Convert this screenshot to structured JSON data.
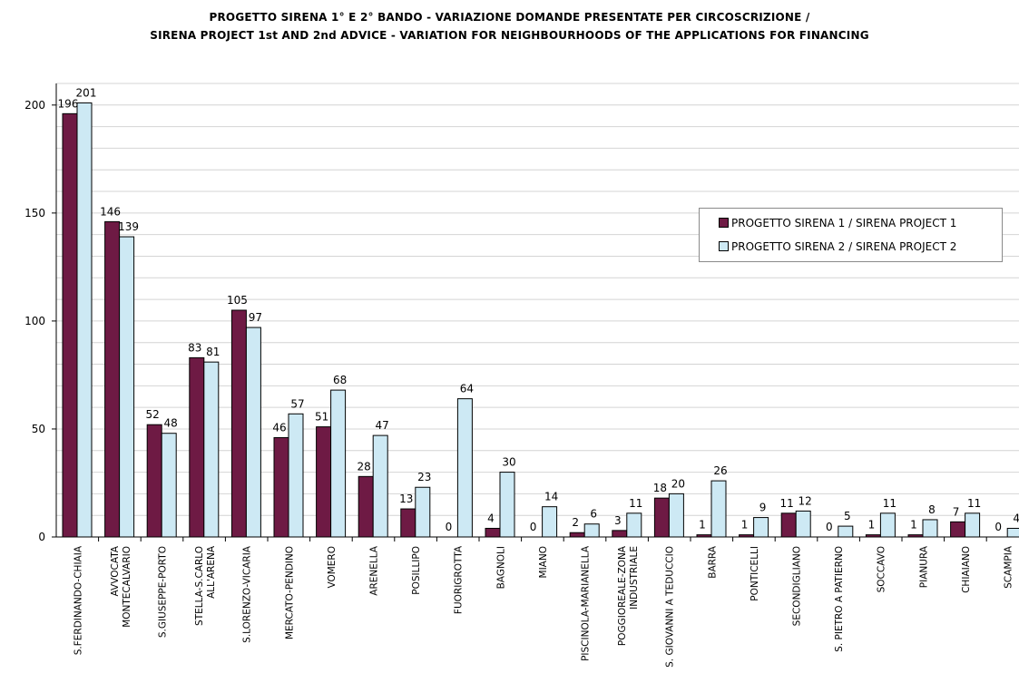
{
  "title_line1": "PROGETTO SIRENA 1° E 2° BANDO - VARIAZIONE DOMANDE PRESENTATE PER CIRCOSCRIZIONE /",
  "title_line2": "SIRENA PROJECT 1st AND 2nd ADVICE - VARIATION FOR NEIGHBOURHOODS OF THE APPLICATIONS FOR FINANCING",
  "chart_data": {
    "type": "bar",
    "title": "PROGETTO SIRENA 1° E 2° BANDO - VARIAZIONE DOMANDE PRESENTATE PER CIRCOSCRIZIONE / SIRENA PROJECT 1st AND 2nd ADVICE - VARIATION FOR NEIGHBOURHOODS OF THE APPLICATIONS FOR FINANCING",
    "xlabel": "",
    "ylabel": "",
    "ylim": [
      0,
      210
    ],
    "yticks": [
      0,
      50,
      100,
      150,
      200
    ],
    "grid": true,
    "legend_position": "right",
    "categories": [
      "S.FERDINANDO-CHIAIA",
      "AVVOCATA MONTECALVARIO",
      "S.GIUSEPPE-PORTO",
      "STELLA-S.CARLO ALL'ARENA",
      "S.LORENZO-VICARIA",
      "MERCATO-PENDINO",
      "VOMERO",
      "ARENELLA",
      "POSILLIPO",
      "FUORIGROTTA",
      "BAGNOLI",
      "MIANO",
      "PISCINOLA-MARIANELLA",
      "POGGIOREALE-ZONA INDUSTRIALE",
      "S. GIOVANNI A TEDUCCIO",
      "BARRA",
      "PONTICELLI",
      "SECONDIGLIANO",
      "S. PIETRO A PATIERNO",
      "SOCCAVO",
      "PIANURA",
      "CHIAIANO",
      "SCAMPIA"
    ],
    "series": [
      {
        "name": "PROGETTO SIRENA 1 / SIRENA PROJECT 1",
        "color": "#6e1a44",
        "values": [
          196,
          146,
          52,
          83,
          105,
          46,
          51,
          28,
          13,
          0,
          4,
          0,
          2,
          3,
          18,
          1,
          1,
          11,
          0,
          1,
          1,
          7,
          0
        ]
      },
      {
        "name": "PROGETTO SIRENA 2 / SIRENA PROJECT 2",
        "color": "#cde9f4",
        "values": [
          201,
          139,
          48,
          81,
          97,
          57,
          68,
          47,
          23,
          64,
          30,
          14,
          6,
          11,
          20,
          26,
          9,
          12,
          5,
          11,
          8,
          11,
          4
        ]
      }
    ]
  }
}
